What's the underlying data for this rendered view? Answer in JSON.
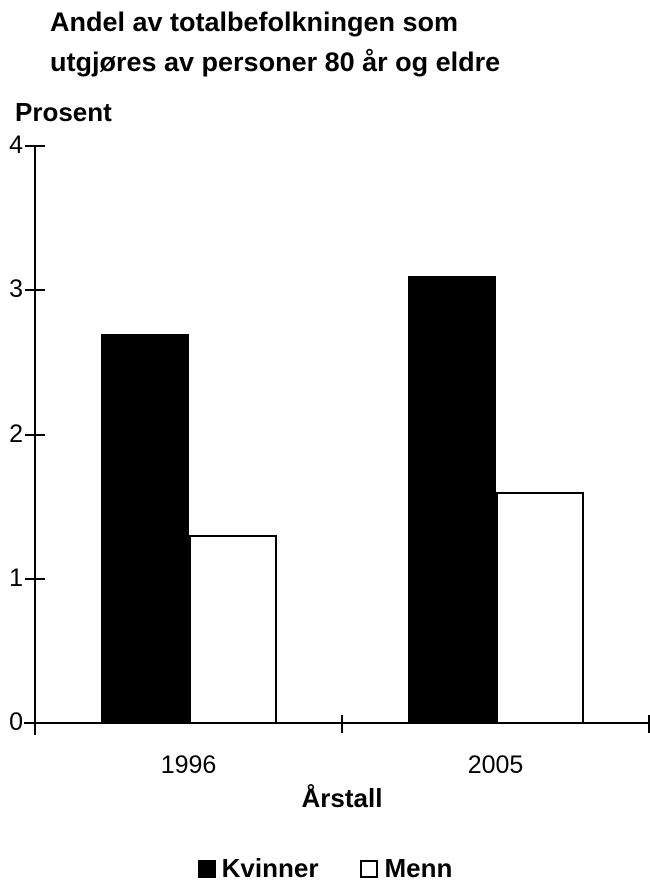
{
  "title": {
    "line1": "Andel av totalbefolkningen som",
    "line2": "utgjøres av personer 80 år og eldre"
  },
  "yaxis": {
    "title": "Prosent"
  },
  "xaxis": {
    "title": "Årstall"
  },
  "legend": {
    "items": [
      {
        "label": "Kvinner",
        "color": "#000000"
      },
      {
        "label": "Menn",
        "color": "#ffffff"
      }
    ]
  },
  "colors": {
    "foreground": "#000000",
    "background": "#ffffff"
  },
  "chart_data": {
    "type": "bar",
    "title": "Andel av totalbefolkningen som utgjøres av personer 80 år og eldre",
    "xlabel": "Årstall",
    "ylabel": "Prosent",
    "categories": [
      "1996",
      "2005"
    ],
    "series": [
      {
        "name": "Kvinner",
        "values": [
          2.7,
          3.1
        ],
        "fill": "#000000",
        "border": "#000000"
      },
      {
        "name": "Menn",
        "values": [
          1.3,
          1.6
        ],
        "fill": "#ffffff",
        "border": "#000000"
      }
    ],
    "ylim": [
      0,
      4
    ],
    "yticks": [
      0,
      1,
      2,
      3,
      4
    ],
    "grid": false,
    "legend_position": "bottom"
  }
}
